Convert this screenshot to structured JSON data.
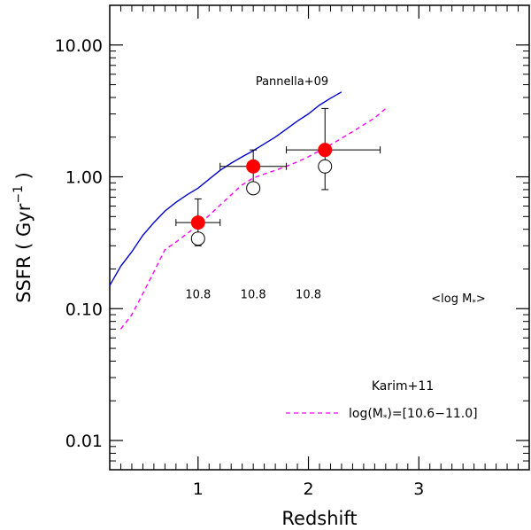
{
  "chart_data": {
    "type": "scatter",
    "title": "",
    "xlabel": "Redshift",
    "ylabel": "SSFR ( Gyr",
    "ylabel_exponent": "−1",
    "ylabel_close": ")",
    "xlim": [
      0.2,
      4.0
    ],
    "ylim": [
      0.006,
      20
    ],
    "yscale": "log",
    "x_ticks": [
      {
        "value": 1,
        "label": "1"
      },
      {
        "value": 2,
        "label": "2"
      },
      {
        "value": 3,
        "label": "3"
      }
    ],
    "y_ticks": [
      {
        "value": 0.01,
        "label": "0.01"
      },
      {
        "value": 0.1,
        "label": "0.10"
      },
      {
        "value": 1,
        "label": "1.00"
      },
      {
        "value": 10,
        "label": "10.00"
      }
    ],
    "series": [
      {
        "name": "Pannella+09",
        "style": "solid-line",
        "color": "#0000cc",
        "x": [
          0.2,
          0.3,
          0.4,
          0.5,
          0.6,
          0.7,
          0.8,
          0.9,
          1.0,
          1.1,
          1.2,
          1.3,
          1.4,
          1.5,
          1.6,
          1.7,
          1.8,
          1.9,
          2.0,
          2.1,
          2.2,
          2.3
        ],
        "y": [
          0.15,
          0.21,
          0.27,
          0.36,
          0.45,
          0.55,
          0.64,
          0.73,
          0.82,
          0.96,
          1.12,
          1.27,
          1.42,
          1.58,
          1.78,
          2.0,
          2.3,
          2.65,
          3.0,
          3.5,
          3.95,
          4.4
        ]
      },
      {
        "name": "Karim+11",
        "style": "dashed-line",
        "color": "#ff00ff",
        "x": [
          0.3,
          0.4,
          0.5,
          0.6,
          0.7,
          0.8,
          0.9,
          1.0,
          1.1,
          1.2,
          1.3,
          1.4,
          1.5,
          1.6,
          1.7,
          1.8,
          1.9,
          2.0,
          2.2,
          2.4,
          2.6,
          2.7
        ],
        "y": [
          0.07,
          0.09,
          0.13,
          0.19,
          0.28,
          0.32,
          0.37,
          0.43,
          0.51,
          0.61,
          0.73,
          0.87,
          0.98,
          1.05,
          1.12,
          1.2,
          1.3,
          1.42,
          1.75,
          2.2,
          2.8,
          3.3
        ]
      },
      {
        "name": "filled points",
        "style": "filled-circle",
        "color": "#ff0000",
        "x": [
          1.0,
          1.5,
          2.15
        ],
        "y": [
          0.45,
          1.2,
          1.6
        ],
        "xerr": [
          [
            0.2,
            0.2
          ],
          [
            0.3,
            0.3
          ],
          [
            0.35,
            0.5
          ]
        ],
        "yerr_low": [
          0.3,
          0.8,
          0.8
        ],
        "yerr_high": [
          0.68,
          1.6,
          3.3
        ]
      },
      {
        "name": "open points",
        "style": "open-circle",
        "color": "#000000",
        "x": [
          1.0,
          1.5,
          2.15
        ],
        "y": [
          0.34,
          0.82,
          1.2
        ]
      }
    ],
    "mass_labels": [
      {
        "x": 1.0,
        "text": "10.8"
      },
      {
        "x": 1.5,
        "text": "10.8"
      },
      {
        "x": 2.0,
        "text": "10.8"
      }
    ],
    "mass_label_y": 0.13,
    "mass_header": "<log M",
    "mass_header_sub": "*",
    "mass_header_close": ">",
    "pannella_label": "Pannella+09",
    "karim_label": "Karim+11",
    "legend_text": "log(M",
    "legend_sub": "*",
    "legend_text_close": ")=[10.6−11.0]"
  }
}
